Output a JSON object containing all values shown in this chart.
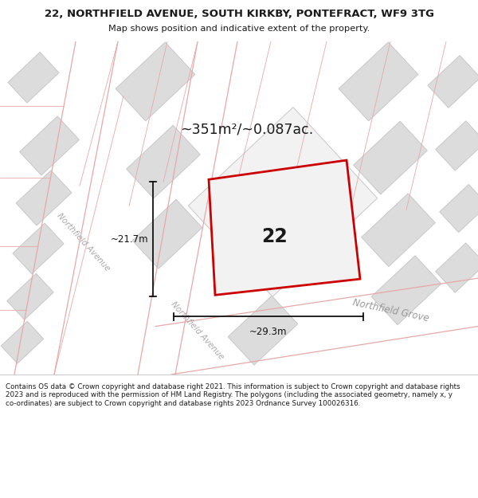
{
  "title_line1": "22, NORTHFIELD AVENUE, SOUTH KIRKBY, PONTEFRACT, WF9 3TG",
  "title_line2": "Map shows position and indicative extent of the property.",
  "area_text": "~351m²/~0.087ac.",
  "property_number": "22",
  "dim_width": "~29.3m",
  "dim_height": "~21.7m",
  "footer_text": "Contains OS data © Crown copyright and database right 2021. This information is subject to Crown copyright and database rights 2023 and is reproduced with the permission of HM Land Registry. The polygons (including the associated geometry, namely x, y co-ordinates) are subject to Crown copyright and database rights 2023 Ordnance Survey 100026316.",
  "map_bg": "#f2f2f2",
  "road_fill": "#ffffff",
  "block_fill": "#dcdcdc",
  "block_edge": "#c8c8c8",
  "road_line": "#e8a8a8",
  "prop_fill": "#f2f2f2",
  "prop_edge": "#cc0000",
  "title_bg": "#ffffff",
  "footer_bg": "#ffffff",
  "text_color": "#1a1a1a",
  "dim_color": "#111111",
  "road_label": "#aaaaaa",
  "grove_label": "#999999"
}
